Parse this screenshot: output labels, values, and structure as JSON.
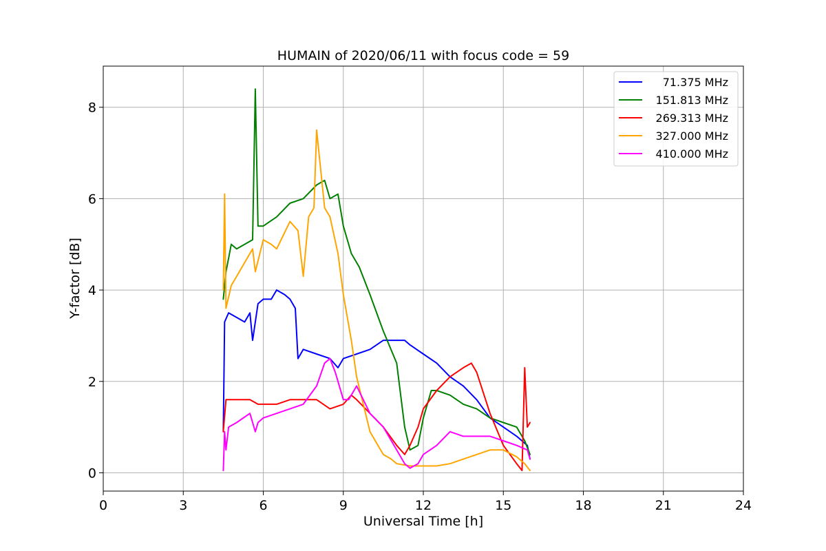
{
  "chart_data": {
    "type": "line",
    "title": "HUMAIN of 2020/06/11 with focus code = 59",
    "xlabel": "Universal Time [h]",
    "ylabel": "Y-factor [dB]",
    "xlim": [
      0,
      24
    ],
    "ylim": [
      -0.4,
      8.9
    ],
    "xticks": [
      0,
      3,
      6,
      9,
      12,
      15,
      18,
      21,
      24
    ],
    "xtick_labels": [
      "0",
      "3",
      "6",
      "9",
      "12",
      "15",
      "18",
      "21",
      "24"
    ],
    "yticks": [
      0,
      2,
      4,
      6,
      8
    ],
    "ytick_labels": [
      "0",
      "2",
      "4",
      "6",
      "8"
    ],
    "grid": true,
    "legend_position": "top-right",
    "series": [
      {
        "name": "71.375 MHz",
        "color": "#0000ff",
        "x": [
          4.5,
          4.55,
          4.7,
          5.0,
          5.3,
          5.5,
          5.6,
          5.8,
          6.0,
          6.3,
          6.5,
          6.8,
          7.0,
          7.2,
          7.3,
          7.5,
          8.0,
          8.5,
          8.8,
          9.0,
          9.5,
          10.0,
          10.5,
          11.0,
          11.3,
          11.5,
          12.0,
          12.5,
          13.0,
          13.5,
          14.0,
          14.5,
          15.0,
          15.5,
          15.9,
          16.0
        ],
        "y": [
          0.9,
          3.3,
          3.5,
          3.4,
          3.3,
          3.5,
          2.9,
          3.7,
          3.8,
          3.8,
          4.0,
          3.9,
          3.8,
          3.6,
          2.5,
          2.7,
          2.6,
          2.5,
          2.3,
          2.5,
          2.6,
          2.7,
          2.9,
          2.9,
          2.9,
          2.8,
          2.6,
          2.4,
          2.1,
          1.9,
          1.6,
          1.2,
          1.0,
          0.8,
          0.6,
          0.3
        ]
      },
      {
        "name": "151.813 MHz",
        "color": "#008000",
        "x": [
          4.5,
          4.6,
          4.8,
          5.0,
          5.3,
          5.6,
          5.7,
          5.8,
          6.0,
          6.5,
          7.0,
          7.5,
          8.0,
          8.3,
          8.5,
          8.8,
          9.0,
          9.3,
          9.6,
          10.0,
          10.5,
          11.0,
          11.3,
          11.5,
          11.8,
          12.0,
          12.3,
          12.5,
          13.0,
          13.5,
          14.0,
          14.5,
          15.0,
          15.5,
          15.8,
          16.0
        ],
        "y": [
          3.8,
          4.4,
          5.0,
          4.9,
          5.0,
          5.1,
          8.4,
          5.4,
          5.4,
          5.6,
          5.9,
          6.0,
          6.3,
          6.4,
          6.0,
          6.1,
          5.4,
          4.8,
          4.5,
          3.9,
          3.1,
          2.4,
          1.0,
          0.5,
          0.6,
          1.2,
          1.8,
          1.8,
          1.7,
          1.5,
          1.4,
          1.2,
          1.1,
          1.0,
          0.7,
          0.4
        ]
      },
      {
        "name": "269.313 MHz",
        "color": "#ff0000",
        "x": [
          4.5,
          4.6,
          5.0,
          5.5,
          5.8,
          6.0,
          6.5,
          7.0,
          7.5,
          8.0,
          8.5,
          9.0,
          9.3,
          9.5,
          10.0,
          10.5,
          11.0,
          11.3,
          11.5,
          11.8,
          12.0,
          12.5,
          13.0,
          13.5,
          13.8,
          14.0,
          14.5,
          15.0,
          15.5,
          15.7,
          15.8,
          15.9,
          16.0
        ],
        "y": [
          0.9,
          1.6,
          1.6,
          1.6,
          1.5,
          1.5,
          1.5,
          1.6,
          1.6,
          1.6,
          1.4,
          1.5,
          1.7,
          1.6,
          1.3,
          1.0,
          0.6,
          0.4,
          0.6,
          1.0,
          1.4,
          1.8,
          2.1,
          2.3,
          2.4,
          2.2,
          1.3,
          0.6,
          0.2,
          0.05,
          2.3,
          1.0,
          1.1
        ]
      },
      {
        "name": "327.000 MHz",
        "color": "#ffa500",
        "x": [
          4.5,
          4.55,
          4.6,
          4.8,
          5.0,
          5.3,
          5.6,
          5.7,
          6.0,
          6.3,
          6.5,
          7.0,
          7.3,
          7.5,
          7.7,
          7.9,
          8.0,
          8.3,
          8.5,
          8.8,
          9.0,
          9.3,
          9.5,
          10.0,
          10.3,
          10.5,
          10.8,
          11.0,
          11.5,
          12.0,
          12.5,
          13.0,
          13.5,
          14.0,
          14.5,
          15.0,
          15.5,
          15.8,
          16.0
        ],
        "y": [
          4.0,
          6.1,
          3.6,
          4.1,
          4.3,
          4.6,
          4.9,
          4.4,
          5.1,
          5.0,
          4.9,
          5.5,
          5.3,
          4.3,
          5.6,
          5.8,
          7.5,
          5.8,
          5.6,
          4.8,
          3.9,
          2.9,
          2.1,
          0.9,
          0.6,
          0.4,
          0.3,
          0.2,
          0.15,
          0.15,
          0.15,
          0.2,
          0.3,
          0.4,
          0.5,
          0.5,
          0.35,
          0.2,
          0.05
        ]
      },
      {
        "name": "410.000 MHz",
        "color": "#ff00ff",
        "x": [
          4.5,
          4.55,
          4.6,
          4.7,
          5.0,
          5.5,
          5.7,
          5.8,
          6.0,
          6.5,
          7.0,
          7.5,
          8.0,
          8.3,
          8.5,
          8.7,
          9.0,
          9.2,
          9.5,
          10.0,
          10.5,
          10.8,
          11.0,
          11.3,
          11.5,
          11.8,
          12.0,
          12.5,
          13.0,
          13.5,
          14.0,
          14.5,
          15.0,
          15.5,
          15.9,
          16.0
        ],
        "y": [
          0.05,
          0.9,
          0.5,
          1.0,
          1.1,
          1.3,
          0.9,
          1.1,
          1.2,
          1.3,
          1.4,
          1.5,
          1.9,
          2.4,
          2.5,
          2.2,
          1.6,
          1.6,
          1.9,
          1.3,
          1.0,
          0.7,
          0.5,
          0.2,
          0.1,
          0.2,
          0.4,
          0.6,
          0.9,
          0.8,
          0.8,
          0.8,
          0.7,
          0.6,
          0.5,
          0.3
        ]
      }
    ]
  }
}
